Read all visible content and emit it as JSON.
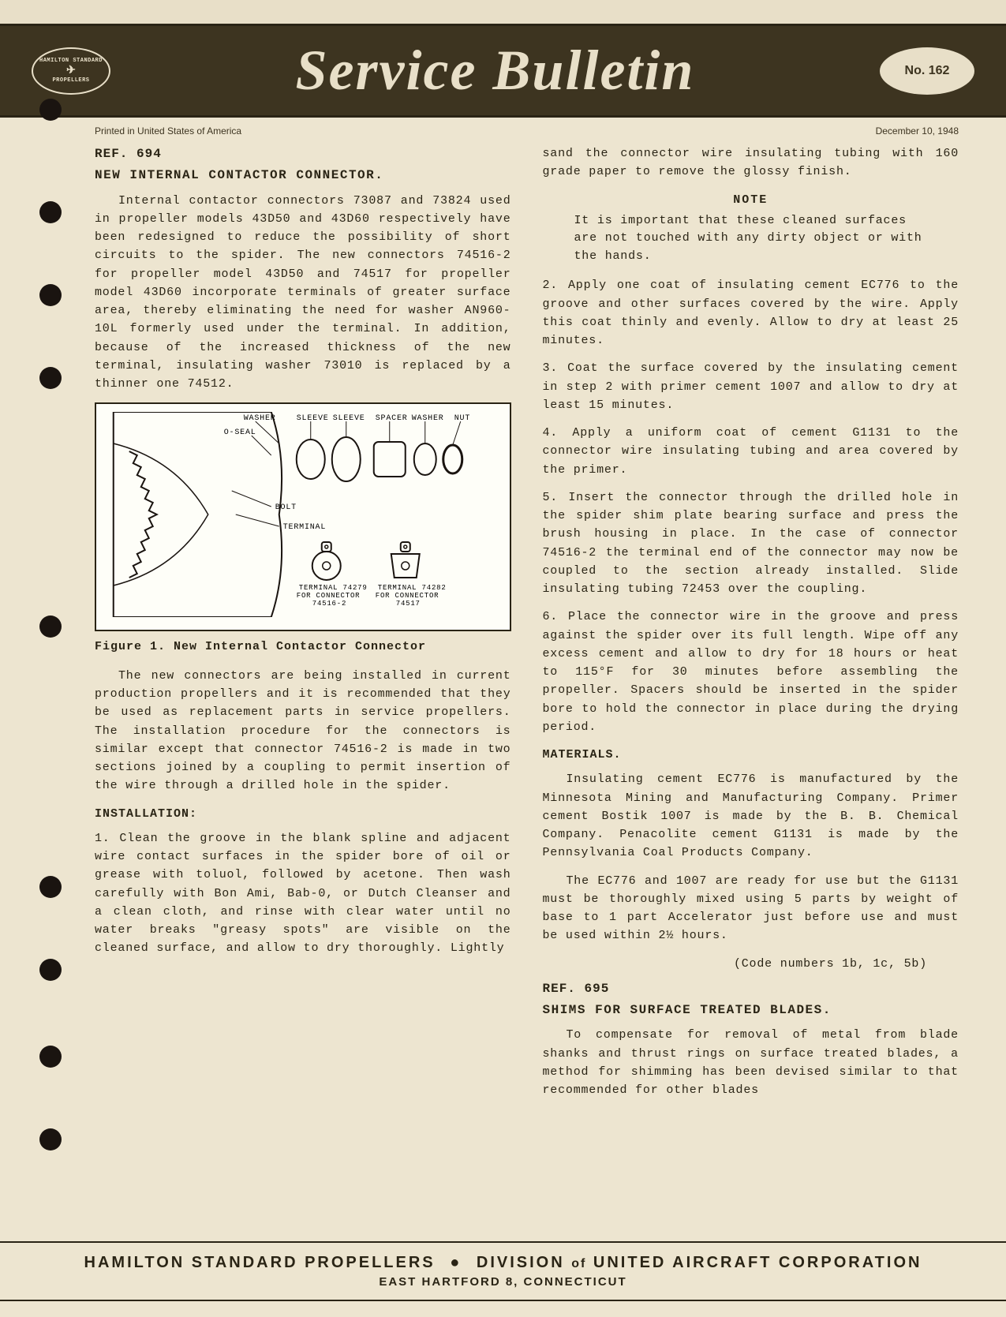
{
  "header": {
    "logo_top": "HAMILTON STANDARD",
    "logo_bot": "PROPELLERS",
    "title": "Service Bulletin",
    "issue": "No. 162"
  },
  "meta": {
    "printed": "Printed in United States of America",
    "date": "December 10, 1948"
  },
  "left": {
    "ref": "REF. 694",
    "title": "NEW INTERNAL CONTACTOR CONNECTOR.",
    "para1": "Internal contactor connectors 73087 and 73824 used in propeller models 43D50 and 43D60 respectively have been redesigned to reduce the possibility of short circuits to the spider. The new connectors 74516-2 for propeller model 43D50 and 74517 for propeller model 43D60 incorporate terminals of greater surface area, thereby eliminating the need for washer AN960-10L formerly used under the terminal. In addition, because of the increased thickness of the new terminal, insulating washer 73010 is replaced by a thinner one 74512.",
    "fig_labels": {
      "washer": "WASHER",
      "oseal": "O-SEAL",
      "sleeve1": "SLEEVE",
      "sleeve2": "SLEEVE",
      "spacer": "SPACER",
      "washer2": "WASHER",
      "nut": "NUT",
      "bolt": "BOLT",
      "terminal": "TERMINAL",
      "term_left": "TERMINAL 74279 FOR CONNECTOR 74516-2",
      "term_right": "TERMINAL 74282 FOR CONNECTOR 74517"
    },
    "fig_caption": "Figure 1.  New Internal Contactor Connector",
    "para2": "The new connectors are being installed in current production propellers and it is recommended that they be used as replacement parts in service propellers. The installation procedure for the connectors is similar except that connector 74516-2 is made in two sections joined by a coupling to permit insertion of the wire through a drilled hole in the spider.",
    "install_heading": "INSTALLATION:",
    "step1": "1.  Clean the groove in the blank spline and adjacent wire contact surfaces in the spider bore of oil or grease with toluol, followed by acetone. Then wash carefully with Bon Ami, Bab-0, or Dutch Cleanser and a clean cloth, and rinse with clear water until no water breaks \"greasy spots\" are visible on the cleaned surface, and allow to dry thoroughly. Lightly"
  },
  "right": {
    "cont1": "sand the connector wire insulating tubing with 160 grade paper to remove the glossy finish.",
    "note_heading": "NOTE",
    "note_text": "It is important that these cleaned surfaces are not touched with any dirty object or with the hands.",
    "step2": "2.  Apply one coat of insulating cement EC776 to the groove and other surfaces covered by the wire. Apply this coat thinly and evenly. Allow to dry at least 25 minutes.",
    "step3": "3.  Coat the surface covered by the insulating cement in step 2 with primer cement 1007 and allow to dry at least 15 minutes.",
    "step4": "4.  Apply a uniform coat of cement G1131 to the connector wire insulating tubing and area covered by the primer.",
    "step5": "5.  Insert the connector through the drilled hole in the spider shim plate bearing surface and press the brush housing in place. In the case of connector 74516-2 the terminal end of the connector may now be coupled to the section already installed. Slide insulating tubing 72453 over the coupling.",
    "step6": "6.  Place the connector wire in the groove and press against the spider over its full length. Wipe off any excess cement and allow to dry for 18 hours or heat to 115°F for 30 minutes before assembling the propeller. Spacers should be inserted in the spider bore to hold the connector in place during the drying period.",
    "materials_heading": "MATERIALS.",
    "materials1": "Insulating cement EC776 is manufactured by the Minnesota Mining and Manufacturing Company. Primer cement Bostik 1007 is made by the B. B. Chemical Company. Penacolite cement G1131 is made by the Pennsylvania Coal Products Company.",
    "materials2": "The EC776 and 1007 are ready for use but the G1131 must be thoroughly mixed using 5 parts by weight of base to 1 part Accelerator just before use and must be used within 2½ hours.",
    "codes": "(Code numbers 1b, 1c, 5b)",
    "ref2": "REF. 695",
    "title2": "SHIMS  FOR  SURFACE  TREATED  BLADES.",
    "para_shims": "To compensate for removal of metal from blade shanks and thrust rings on surface treated blades, a method for shimming has been devised similar to that recommended for other blades"
  },
  "footer": {
    "company": "HAMILTON STANDARD PROPELLERS",
    "division": "DIVISION",
    "of": "of",
    "parent": "UNITED AIRCRAFT CORPORATION",
    "address": "EAST HARTFORD 8, CONNECTICUT"
  },
  "punch_holes": [
    95,
    225,
    330,
    435,
    750,
    1080,
    1185,
    1295,
    1400
  ]
}
